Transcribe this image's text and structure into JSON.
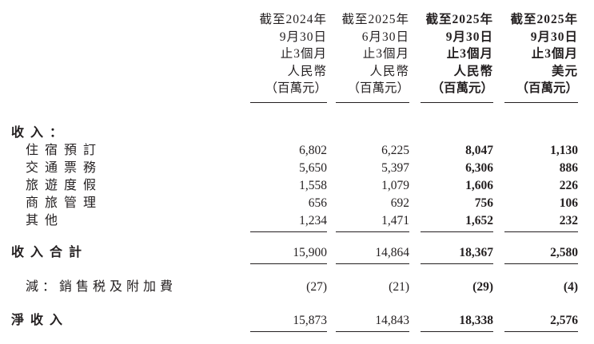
{
  "page": {
    "background": "#ffffff",
    "text_color": "#231f20"
  },
  "table": {
    "header": {
      "columns": [
        {
          "lines": [
            "截至2024年",
            "9月30日",
            "止3個月",
            "人民幣",
            "（百萬元）"
          ],
          "bold": false
        },
        {
          "lines": [
            "截至2025年",
            "6月30日",
            "止3個月",
            "人民幣",
            "（百萬元）"
          ],
          "bold": false
        },
        {
          "lines": [
            "截至2025年",
            "9月30日",
            "止3個月",
            "人民幣",
            "（百萬元）"
          ],
          "bold": true
        },
        {
          "lines": [
            "截至2025年",
            "9月30日",
            "止3個月",
            "美元",
            "（百萬元）"
          ],
          "bold": true
        }
      ]
    },
    "section_header": "收入：",
    "revenue_rows": [
      {
        "label": "住宿預訂",
        "values": [
          "6,802",
          "6,225",
          "8,047",
          "1,130"
        ]
      },
      {
        "label": "交通票務",
        "values": [
          "5,650",
          "5,397",
          "6,306",
          "886"
        ]
      },
      {
        "label": "旅遊度假",
        "values": [
          "1,558",
          "1,079",
          "1,606",
          "226"
        ]
      },
      {
        "label": "商旅管理",
        "values": [
          "656",
          "692",
          "756",
          "106"
        ]
      },
      {
        "label": "其他",
        "values": [
          "1,234",
          "1,471",
          "1,652",
          "232"
        ]
      }
    ],
    "total_row": {
      "label": "收入合計",
      "values": [
        "15,900",
        "14,864",
        "18,367",
        "2,580"
      ]
    },
    "deduction_row": {
      "label": "減：銷售税及附加費",
      "values": [
        "(27)",
        "(21)",
        "(29)",
        "(4)"
      ]
    },
    "net_row": {
      "label": "淨收入",
      "values": [
        "15,873",
        "14,843",
        "18,338",
        "2,576"
      ]
    }
  }
}
